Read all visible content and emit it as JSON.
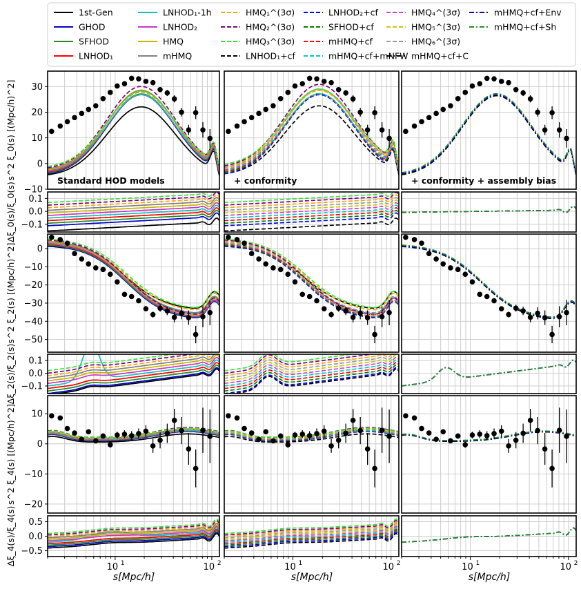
{
  "chart_data": {
    "type": "line",
    "title": "",
    "xlabel": "s[Mpc/h]",
    "x_scale": "log",
    "xlim": [
      2,
      120
    ],
    "x_ticks": [
      10,
      100
    ],
    "x_tick_labels": [
      "10^1",
      "10^2"
    ],
    "columns": [
      {
        "title": "Standard HOD models"
      },
      {
        "title": "+ conformity"
      },
      {
        "title": "+ conformity + assembly bias"
      }
    ],
    "rows": [
      {
        "ylabel": "s^2 ξ_0(s) [(Mpc/h)^2]",
        "ylim": [
          -10,
          36
        ],
        "yticks": [
          -10,
          0,
          10,
          20,
          30
        ]
      },
      {
        "ylabel": "Δξ_0(s)/ξ_0(s)",
        "ylim": [
          -0.16,
          0.15
        ],
        "yticks": [
          -0.1,
          0.0,
          0.1
        ],
        "ytick_labels": [
          "−0.1",
          "0.0",
          "0.1"
        ]
      },
      {
        "ylabel": "s^2 ξ_2(s) [(Mpc/h)^2]",
        "ylim": [
          -57,
          8
        ],
        "yticks": [
          -50,
          -40,
          -30,
          -20,
          -10,
          0
        ]
      },
      {
        "ylabel": "Δξ_2(s)/ξ_2(s)",
        "ylim": [
          -0.16,
          0.15
        ],
        "yticks": [
          -0.1,
          0.0,
          0.1
        ],
        "ytick_labels": [
          "−0.1",
          "0.0",
          "0.1"
        ]
      },
      {
        "ylabel": "s^2 ξ_4(s) [(Mpc/h)^2]",
        "ylim": [
          -23,
          16
        ],
        "yticks": [
          -20,
          -10,
          0,
          10
        ]
      },
      {
        "ylabel": "Δξ_4(s)/ξ_4(s)",
        "ylim": [
          -0.7,
          0.7
        ],
        "yticks": [
          -0.5,
          0.0,
          0.5
        ],
        "ytick_labels": [
          "−0.5",
          "0.0",
          "0.5"
        ]
      }
    ],
    "legend": [
      {
        "label": "1st-Gen",
        "color": "#000000",
        "dash": "solid",
        "panel": 0
      },
      {
        "label": "GHOD",
        "color": "#0000cc",
        "dash": "solid",
        "panel": 0
      },
      {
        "label": "SFHOD",
        "color": "#228b22",
        "dash": "solid",
        "panel": 0
      },
      {
        "label": "LNHOD₁",
        "color": "#ff0000",
        "dash": "solid",
        "panel": 0
      },
      {
        "label": "LNHOD₁-1h",
        "color": "#17bfbf",
        "dash": "solid",
        "panel": 0
      },
      {
        "label": "LNHOD₂",
        "color": "#c837c8",
        "dash": "solid",
        "panel": 0
      },
      {
        "label": "HMQ",
        "color": "#c8b400",
        "dash": "solid",
        "panel": 0
      },
      {
        "label": "mHMQ",
        "color": "#808080",
        "dash": "solid",
        "panel": 0
      },
      {
        "label": "HMQ₁^(3σ)",
        "color": "#ffa500",
        "dash": "dash",
        "panel": 0
      },
      {
        "label": "HMQ₂^(3σ)",
        "color": "#800080",
        "dash": "dash",
        "panel": 0
      },
      {
        "label": "HMQ₃^(3σ)",
        "color": "#32e632",
        "dash": "dash",
        "panel": 0
      },
      {
        "label": "LNHOD₁+cf",
        "color": "#000000",
        "dash": "dash",
        "panel": 1
      },
      {
        "label": "LNHOD₂+cf",
        "color": "#0000ff",
        "dash": "dash",
        "panel": 1
      },
      {
        "label": "SFHOD+cf",
        "color": "#008000",
        "dash": "dash",
        "panel": 1
      },
      {
        "label": "mHMQ+cf",
        "color": "#ff0000",
        "dash": "dash",
        "panel": 1
      },
      {
        "label": "mHMQ+cf+mNFW",
        "color": "#00c8c8",
        "dash": "dash",
        "panel": 1
      },
      {
        "label": "HMQ₄^(3σ)",
        "color": "#d040d0",
        "dash": "dash",
        "panel": 1
      },
      {
        "label": "HMQ₅^(3σ)",
        "color": "#c8c800",
        "dash": "dash",
        "panel": 1
      },
      {
        "label": "HMQ₆^(3σ)",
        "color": "#999999",
        "dash": "dash",
        "panel": 1
      },
      {
        "label": "mHMQ+cf+C",
        "color": "#000000",
        "dash": "dashdot",
        "panel": 2
      },
      {
        "label": "mHMQ+cf+Env",
        "color": "#0000cc",
        "dash": "dashdot",
        "panel": 2
      },
      {
        "label": "mHMQ+cf+Sh",
        "color": "#228b22",
        "dash": "dashdot",
        "panel": 2
      }
    ],
    "observations": {
      "xi0": {
        "s": [
          2.2,
          2.7,
          3.2,
          3.8,
          4.5,
          5.3,
          6.3,
          7.5,
          8.9,
          10.5,
          12.5,
          14.8,
          17.5,
          20.8,
          24.6,
          29.2,
          34.6,
          41,
          48.6,
          57.6,
          68.2,
          80.9,
          95.8
        ],
        "y": [
          12.5,
          14.6,
          16.3,
          17.9,
          19.5,
          21.1,
          22.5,
          25.3,
          27.7,
          30.2,
          31.1,
          33.2,
          33.0,
          32.0,
          31.5,
          28.8,
          27.5,
          25.2,
          20.0,
          13.1,
          19.8,
          13.1,
          9.8
        ],
        "err": [
          0.4,
          0.4,
          0.4,
          0.4,
          0.4,
          0.4,
          0.5,
          0.5,
          0.5,
          0.5,
          0.6,
          0.6,
          0.7,
          0.8,
          0.9,
          1.0,
          1.2,
          1.4,
          1.7,
          2.0,
          2.5,
          3.0,
          3.6
        ]
      },
      "xi2": {
        "s": [
          2.2,
          2.7,
          3.2,
          3.8,
          4.5,
          5.3,
          6.3,
          7.5,
          8.9,
          10.5,
          12.5,
          14.8,
          17.5,
          20.8,
          24.6,
          29.2,
          34.6,
          41,
          48.6,
          57.6,
          68.2,
          80.9,
          95.8
        ],
        "y": [
          6.2,
          5.0,
          3.0,
          -2.7,
          -5.7,
          -8.4,
          -10.6,
          -11.5,
          -14.1,
          -18.3,
          -25.2,
          -26.4,
          -28.7,
          -33.1,
          -36.3,
          -32.8,
          -34.3,
          -37.8,
          -35.6,
          -38.0,
          -47.3,
          -37.5,
          -35.2
        ],
        "err": [
          0.4,
          0.4,
          0.4,
          0.4,
          0.5,
          0.5,
          0.6,
          0.6,
          0.7,
          0.8,
          0.9,
          1.0,
          1.2,
          1.4,
          1.6,
          1.9,
          2.3,
          2.8,
          3.3,
          4.0,
          4.8,
          5.8,
          7.0
        ]
      },
      "xi4": {
        "s": [
          2.2,
          2.7,
          3.2,
          3.8,
          4.5,
          5.3,
          6.3,
          7.5,
          8.9,
          10.5,
          12.5,
          14.8,
          17.5,
          20.8,
          24.6,
          29.2,
          34.6,
          41,
          48.6,
          57.6,
          68.2,
          80.9,
          95.8
        ],
        "y": [
          9.3,
          8.6,
          5.1,
          3.6,
          1.5,
          4.0,
          1.0,
          2.6,
          -0.3,
          2.9,
          3.2,
          2.7,
          3.4,
          4.2,
          -0.7,
          1.2,
          3.5,
          7.8,
          4.4,
          -1.7,
          -8.2,
          4.5,
          2.5
        ],
        "err": [
          0.4,
          0.5,
          0.5,
          0.6,
          0.6,
          0.7,
          0.8,
          0.9,
          1.0,
          1.1,
          1.3,
          1.5,
          1.7,
          2.0,
          2.3,
          2.7,
          3.2,
          3.8,
          4.5,
          5.3,
          6.3,
          7.5,
          8.9
        ]
      }
    }
  }
}
